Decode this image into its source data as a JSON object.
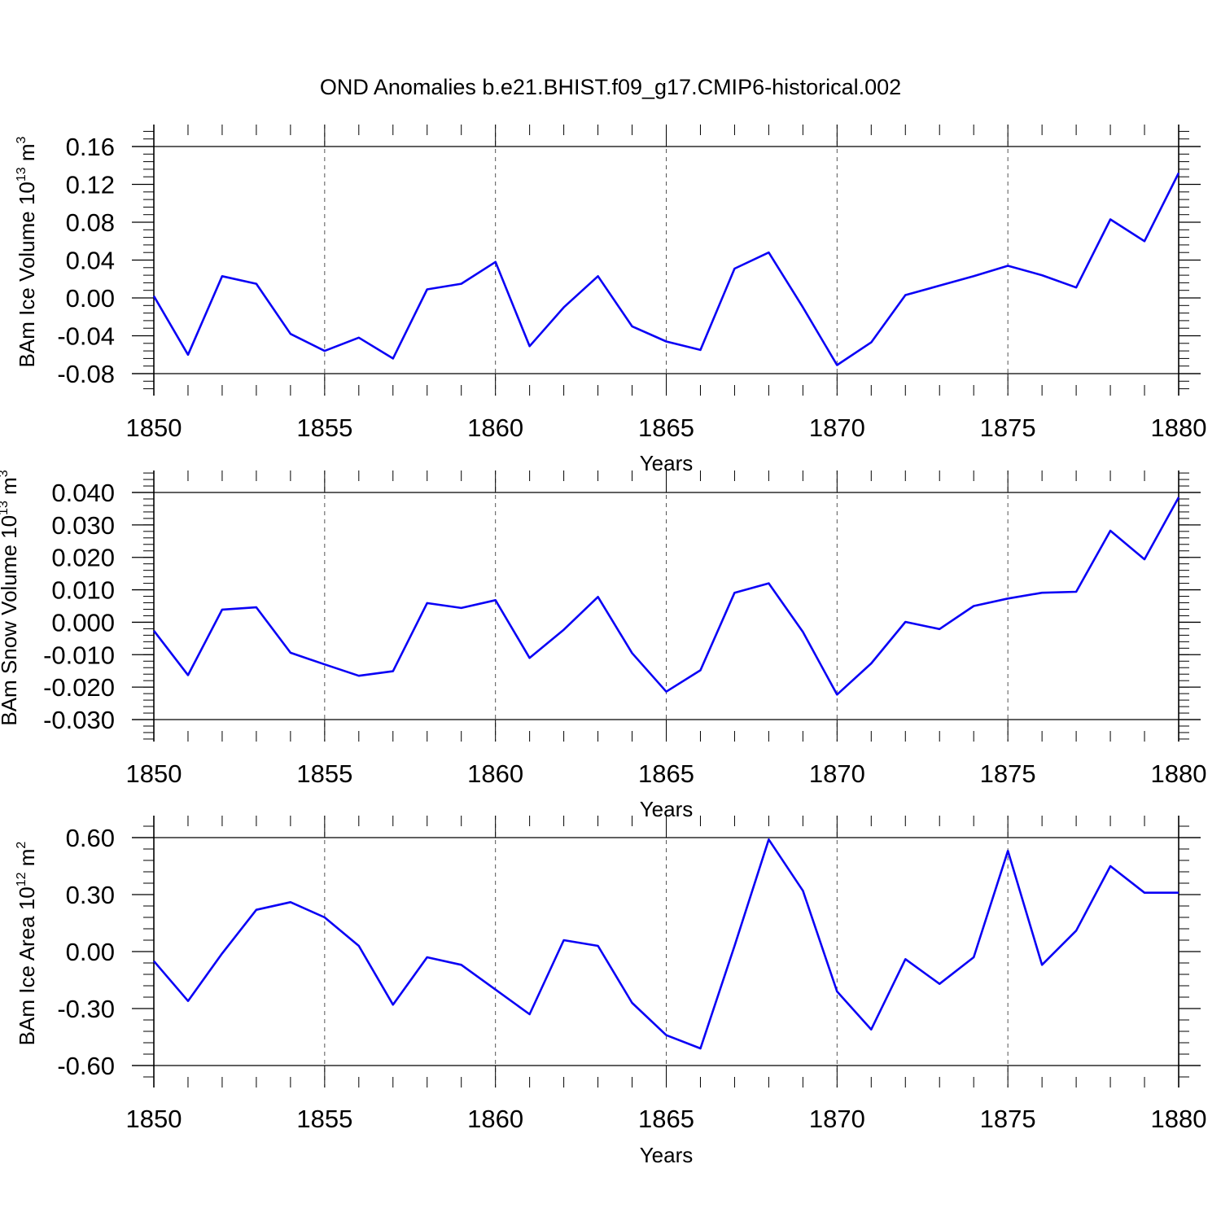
{
  "title": "OND Anomalies b.e21.BHIST.f09_g17.CMIP6-historical.002",
  "colors": {
    "line": "#0a00f5",
    "axis": "#000000",
    "grid": "#555555"
  },
  "chart_data": [
    {
      "type": "line",
      "ylabel": "BAm Ice Volume 10",
      "ylabel_exp": "13",
      "ylabel_unit": " m",
      "ylabel_unit_exp": "3",
      "xlabel": "Years",
      "xlim": [
        1850,
        1880
      ],
      "ylim": [
        -0.08,
        0.16
      ],
      "yticks": [
        "0.16",
        "0.12",
        "0.08",
        "0.04",
        "0.00",
        "-0.04",
        "-0.08"
      ],
      "xticks": [
        "1850",
        "1855",
        "1860",
        "1865",
        "1870",
        "1875",
        "1880"
      ],
      "grid": "vertical dashed at major x ticks",
      "series": [
        {
          "x": [
            1850,
            1851,
            1852,
            1853,
            1854,
            1855,
            1856,
            1857,
            1858,
            1859,
            1860,
            1861,
            1862,
            1863,
            1864,
            1865,
            1866,
            1867,
            1868,
            1869,
            1870,
            1871,
            1872,
            1873,
            1874,
            1875,
            1876,
            1877,
            1878,
            1879,
            1880
          ],
          "values": [
            0.002,
            -0.06,
            0.023,
            0.015,
            -0.038,
            -0.056,
            -0.042,
            -0.064,
            0.009,
            0.015,
            0.038,
            -0.051,
            -0.01,
            0.023,
            -0.03,
            -0.046,
            -0.055,
            0.031,
            0.048,
            -0.01,
            -0.071,
            -0.047,
            0.003,
            0.013,
            0.023,
            0.034,
            0.024,
            0.011,
            0.083,
            0.06,
            0.132
          ]
        }
      ]
    },
    {
      "type": "line",
      "ylabel": "BAm Snow Volume 10",
      "ylabel_exp": "13",
      "ylabel_unit": " m",
      "ylabel_unit_exp": "3",
      "xlabel": "Years",
      "xlim": [
        1850,
        1880
      ],
      "ylim": [
        -0.03,
        0.04
      ],
      "yticks": [
        "0.040",
        "0.030",
        "0.020",
        "0.010",
        "0.000",
        "-0.010",
        "-0.020",
        "-0.030"
      ],
      "xticks": [
        "1850",
        "1855",
        "1860",
        "1865",
        "1870",
        "1875",
        "1880"
      ],
      "grid": "vertical dashed at major x ticks",
      "series": [
        {
          "x": [
            1850,
            1851,
            1852,
            1853,
            1854,
            1855,
            1856,
            1857,
            1858,
            1859,
            1860,
            1861,
            1862,
            1863,
            1864,
            1865,
            1866,
            1867,
            1868,
            1869,
            1870,
            1871,
            1872,
            1873,
            1874,
            1875,
            1876,
            1877,
            1878,
            1879,
            1880
          ],
          "values": [
            -0.0026,
            -0.0163,
            0.0039,
            0.0046,
            -0.0094,
            -0.013,
            -0.0165,
            -0.0151,
            0.0059,
            0.0044,
            0.0068,
            -0.011,
            -0.0023,
            0.0078,
            -0.0095,
            -0.0214,
            -0.0148,
            0.0091,
            0.012,
            -0.003,
            -0.0223,
            -0.0127,
            0.0001,
            -0.0021,
            0.005,
            0.0073,
            0.0091,
            0.0094,
            0.0282,
            0.0194,
            0.0385
          ]
        }
      ]
    },
    {
      "type": "line",
      "ylabel": "BAm Ice Area 10",
      "ylabel_exp": "12",
      "ylabel_unit": " m",
      "ylabel_unit_exp": "2",
      "xlabel": "Years",
      "xlim": [
        1850,
        1880
      ],
      "ylim": [
        -0.6,
        0.6
      ],
      "yticks": [
        "0.60",
        "0.30",
        "0.00",
        "-0.30",
        "-0.60"
      ],
      "xticks": [
        "1850",
        "1855",
        "1860",
        "1865",
        "1870",
        "1875",
        "1880"
      ],
      "grid": "vertical dashed at major x ticks",
      "series": [
        {
          "x": [
            1850,
            1851,
            1852,
            1853,
            1854,
            1855,
            1856,
            1857,
            1858,
            1859,
            1860,
            1861,
            1862,
            1863,
            1864,
            1865,
            1866,
            1867,
            1868,
            1869,
            1870,
            1871,
            1872,
            1873,
            1874,
            1875,
            1876,
            1877,
            1878,
            1879,
            1880
          ],
          "values": [
            -0.05,
            -0.26,
            -0.01,
            0.22,
            0.26,
            0.18,
            0.03,
            -0.28,
            -0.03,
            -0.07,
            -0.2,
            -0.33,
            0.06,
            0.03,
            -0.27,
            -0.44,
            -0.51,
            0.03,
            0.59,
            0.32,
            -0.21,
            -0.41,
            -0.04,
            -0.17,
            -0.03,
            0.53,
            -0.07,
            0.11,
            0.45,
            0.31,
            0.31
          ]
        }
      ]
    }
  ]
}
